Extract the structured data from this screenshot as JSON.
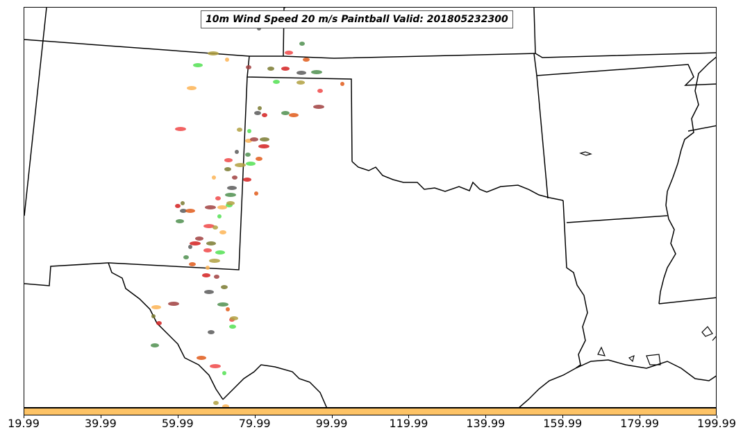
{
  "title": "10m Wind Speed 20 m/s Paintball Valid: 201805232300",
  "colorbar": {
    "color": "#fdc366",
    "tick_labels": [
      "19.99",
      "39.99",
      "59.99",
      "79.99",
      "99.99",
      "119.99",
      "139.99",
      "159.99",
      "179.99",
      "199.99"
    ]
  },
  "colors": {
    "state_lines": "#000000",
    "member_colors": [
      "#5b5b5b",
      "#4f8f4f",
      "#e05a1a",
      "#f04848",
      "#52e052",
      "#b0a040",
      "#fdb455",
      "#a04040",
      "#7a7a30",
      "#d42020"
    ]
  }
}
